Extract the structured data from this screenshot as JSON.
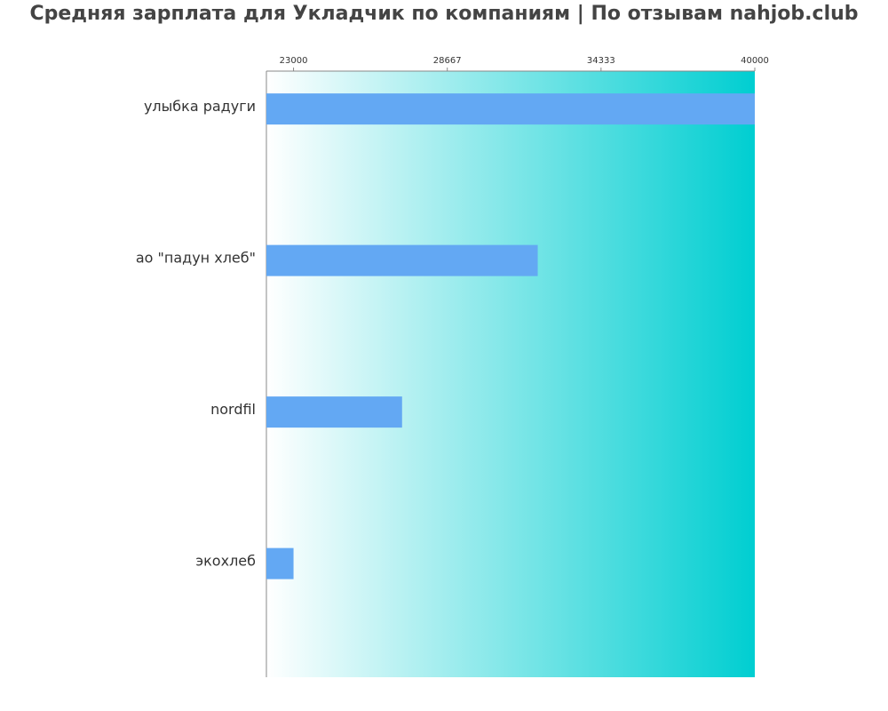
{
  "chart_data": {
    "type": "bar",
    "orientation": "horizontal",
    "title": "Средняя зарплата для Укладчик по компаниям  | По отзывам nahjob.club",
    "categories": [
      "улыбка радуги",
      "ао \"падун хлеб\"",
      "nordfil",
      "экохлеб"
    ],
    "values": [
      40000,
      32000,
      27000,
      23000
    ],
    "color": "#63a8f3",
    "xlim": [
      22000,
      40000
    ],
    "xticks": [
      23000,
      28667,
      34333,
      40000
    ],
    "background_gradient": [
      "#ffffff",
      "#00ced1"
    ]
  }
}
